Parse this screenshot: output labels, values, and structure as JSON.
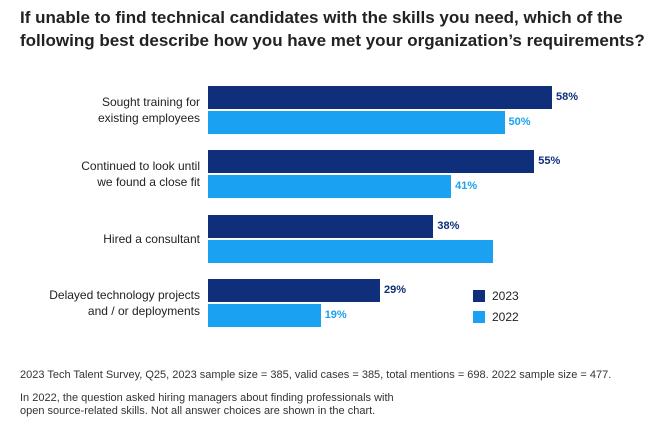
{
  "chart_data": {
    "type": "bar",
    "orientation": "horizontal",
    "title": "If unable to find technical candidates with the skills you need, which of the\nfollowing best describe how you have met your organization’s requirements?",
    "categories": [
      "Sought training for\nexisting employees",
      "Continued to look until\nwe found a close fit",
      "Hired a consultant",
      "Delayed technology projects\nand / or deployments"
    ],
    "series": [
      {
        "name": "2023",
        "color": "#0f2f7b",
        "values": [
          58,
          55,
          38,
          29
        ],
        "value_labels": [
          "58%",
          "55%",
          "38%",
          "29%"
        ]
      },
      {
        "name": "2022",
        "color": "#1ba1f2",
        "values": [
          50,
          41,
          48,
          19
        ],
        "value_labels": [
          "50%",
          "41%",
          null,
          "19%"
        ]
      }
    ],
    "notes": [
      "2023 Tech Talent Survey, Q25, 2023 sample size = 385, valid cases = 385, total mentions = 698. 2022 sample size = 477.",
      "In 2022, the question asked hiring managers about finding professionals with\nopen source-related skills. Not all answer choices are shown in the chart."
    ]
  }
}
